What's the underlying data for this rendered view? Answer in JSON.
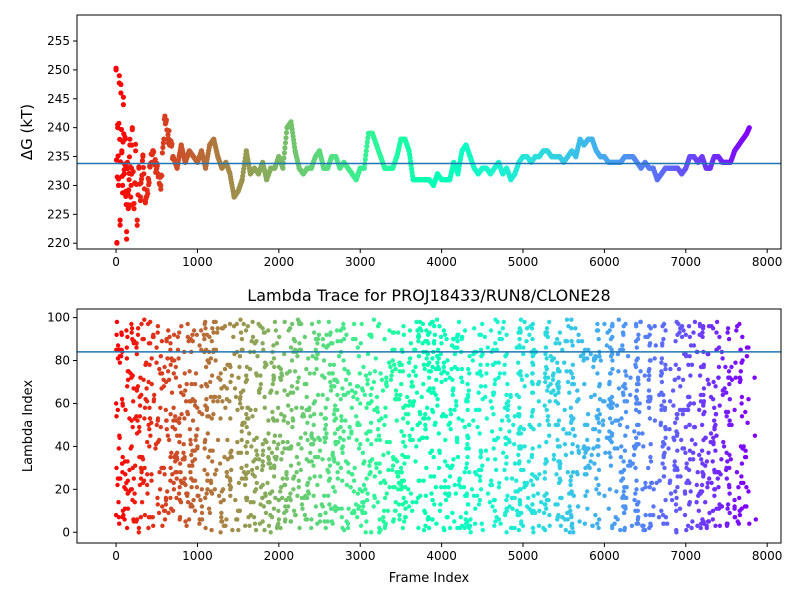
{
  "chart_data": [
    {
      "type": "scatter",
      "title": "",
      "xlabel": "",
      "ylabel": "ΔG (kT)",
      "ylabel_italic_symbol": "G",
      "xlim": [
        -480,
        8170
      ],
      "ylim": [
        219,
        259.5
      ],
      "xticks": [
        0,
        1000,
        2000,
        3000,
        4000,
        5000,
        6000,
        7000,
        8000
      ],
      "yticks": [
        220,
        225,
        230,
        235,
        240,
        245,
        250,
        255
      ],
      "reference_line_y": 233.8,
      "reference_line_color": "#1f77b4",
      "colormap": "rainbow (red at frame 0 → violet at last frame)",
      "grid": false,
      "legend": "none",
      "series": [
        {
          "x": [
            0,
            10,
            20,
            30,
            40,
            50,
            60,
            70,
            80,
            90,
            100,
            110,
            120,
            130,
            140,
            150,
            160,
            170,
            180,
            190,
            200,
            220,
            240,
            260,
            280,
            300,
            330,
            360,
            400,
            450,
            500,
            550,
            600,
            650,
            700,
            750,
            800,
            850,
            900,
            950,
            1000,
            1050,
            1100,
            1150,
            1200,
            1250,
            1300,
            1350,
            1400,
            1450,
            1500,
            1550,
            1600,
            1650,
            1700,
            1750,
            1800,
            1850,
            1900,
            1950,
            2000,
            2050,
            2100,
            2150,
            2200,
            2250,
            2300,
            2350,
            2400,
            2450,
            2500,
            2550,
            2600,
            2650,
            2700,
            2750,
            2800,
            2850,
            2900,
            2950,
            3000,
            3050,
            3100,
            3150,
            3200,
            3250,
            3300,
            3350,
            3400,
            3450,
            3500,
            3550,
            3600,
            3650,
            3700,
            3750,
            3800,
            3850,
            3900,
            3950,
            4000,
            4050,
            4100,
            4150,
            4200,
            4250,
            4300,
            4350,
            4400,
            4450,
            4500,
            4550,
            4600,
            4650,
            4700,
            4750,
            4800,
            4850,
            4900,
            4950,
            5000,
            5050,
            5100,
            5150,
            5200,
            5250,
            5300,
            5350,
            5400,
            5450,
            5500,
            5550,
            5600,
            5650,
            5700,
            5750,
            5800,
            5850,
            5900,
            5950,
            6000,
            6050,
            6100,
            6150,
            6200,
            6250,
            6300,
            6350,
            6400,
            6450,
            6500,
            6550,
            6600,
            6650,
            6700,
            6750,
            6800,
            6850,
            6900,
            6950,
            7000,
            7050,
            7100,
            7150,
            7200,
            7250,
            7300,
            7350,
            7400,
            7450,
            7500,
            7550,
            7600,
            7650,
            7700,
            7750,
            7780
          ],
          "y": [
            250,
            220,
            240,
            230,
            249,
            224,
            246,
            236,
            230,
            244,
            232,
            238,
            229,
            222,
            234,
            226,
            231,
            237,
            228,
            233,
            240,
            226,
            236,
            224,
            233,
            228,
            235,
            227,
            231,
            236,
            233,
            230,
            242,
            238,
            235,
            233,
            237,
            234,
            236,
            235,
            234,
            236,
            233,
            237,
            238,
            235,
            233,
            234,
            232,
            228,
            229,
            231,
            236,
            232,
            233,
            232,
            234,
            231,
            233,
            233,
            235,
            233,
            240,
            241,
            236,
            233,
            232,
            233,
            233,
            235,
            236,
            233,
            233,
            235,
            235,
            233,
            234,
            233,
            232,
            231,
            233,
            233,
            239,
            239,
            237,
            235,
            233,
            233,
            233,
            235,
            238,
            238,
            236,
            231,
            231,
            231,
            231,
            231,
            230,
            232,
            231,
            231,
            231,
            234,
            232,
            236,
            237,
            235,
            233,
            232,
            233,
            233,
            232,
            233,
            234,
            232,
            233,
            231,
            232,
            234,
            235,
            235,
            234,
            235,
            235,
            236,
            236,
            235,
            235,
            235,
            234,
            235,
            236,
            235,
            238,
            237,
            238,
            238,
            236,
            235,
            235,
            234,
            234,
            234,
            234,
            235,
            235,
            235,
            234,
            233,
            234,
            233,
            233,
            231,
            232,
            233,
            233,
            233,
            233,
            232,
            233,
            235,
            235,
            234,
            235,
            233,
            233,
            235,
            235,
            234,
            234,
            234,
            236,
            237,
            238,
            239,
            240
          ]
        }
      ]
    },
    {
      "type": "scatter",
      "title": "Lambda Trace for PROJ18433/RUN8/CLONE28",
      "xlabel": "Frame Index",
      "ylabel": "Lambda Index",
      "xlim": [
        -480,
        8170
      ],
      "ylim": [
        -5,
        104
      ],
      "xticks": [
        0,
        1000,
        2000,
        3000,
        4000,
        5000,
        6000,
        7000,
        8000
      ],
      "yticks": [
        0,
        20,
        40,
        60,
        80,
        100
      ],
      "reference_line_y": 84,
      "reference_line_color": "#1f77b4",
      "colormap": "rainbow (red at frame 0 → violet at last frame)",
      "grid": false,
      "legend": "none",
      "series": [
        {
          "x_range": [
            0,
            7780
          ],
          "y_range": [
            0,
            99
          ],
          "pattern": "dense scatter of individual lambda indices per frame, vertical streaks of points spanning 0–99",
          "x_sample": [
            0,
            5,
            10,
            40,
            80,
            120,
            200,
            300,
            400,
            500,
            600,
            800,
            1000,
            1200,
            1400,
            1600,
            1800,
            2000,
            2200,
            2400,
            2600,
            2800,
            3000,
            3200,
            3400,
            3600,
            3800,
            4000,
            4200,
            4400,
            4600,
            4800,
            5000,
            5200,
            5400,
            5600,
            5800,
            6000,
            6200,
            6400,
            6600,
            6800,
            7000,
            7200,
            7400,
            7600,
            7780
          ],
          "y_sample": [
            8,
            30,
            98,
            45,
            60,
            20,
            90,
            35,
            70,
            50,
            10,
            65,
            40,
            85,
            25,
            55,
            95,
            15,
            75,
            45,
            5,
            90,
            60,
            30,
            80,
            12,
            50,
            70,
            35,
            95,
            22,
            60,
            3,
            40,
            88,
            18,
            55,
            97,
            28,
            66,
            8,
            48,
            92,
            38,
            72,
            15,
            4
          ]
        }
      ]
    }
  ]
}
